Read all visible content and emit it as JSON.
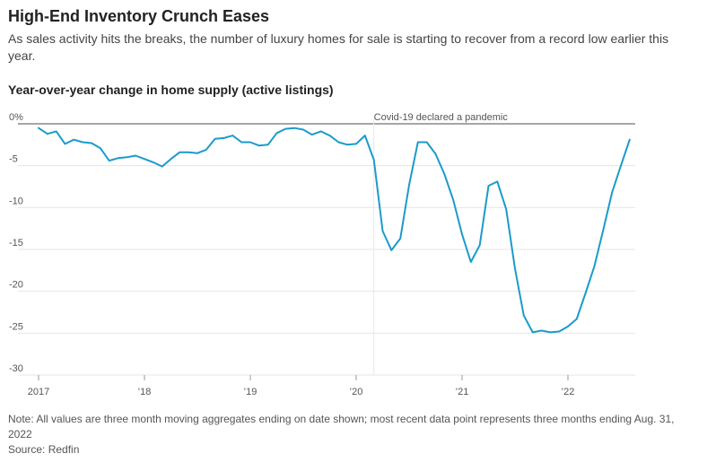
{
  "header": {
    "title": "High-End Inventory Crunch Eases",
    "subtitle": "As sales activity hits the breaks, the number of luxury homes for sale is starting to recover from a record low earlier this year."
  },
  "chart_title": "Year-over-year change in home supply (active listings)",
  "annotation": "Covid-19 declared a pandemic",
  "footer": {
    "note": "Note: All values are three month moving aggregates ending on date shown; most recent data point represents three months ending Aug. 31, 2022",
    "source": "Source: Redfin"
  },
  "colors": {
    "line": "#1a9bcb",
    "grid": "#e6e6e6",
    "zero": "#888888"
  },
  "chart_data": {
    "type": "line",
    "title": "Year-over-year change in home supply (active listings)",
    "ylim": [
      -30,
      0
    ],
    "y_ticks": [
      0,
      -5,
      -10,
      -15,
      -20,
      -25,
      -30
    ],
    "y_tick_labels": [
      "0%",
      "-5",
      "-10",
      "-15",
      "-20",
      "-25",
      "-30"
    ],
    "x_tick_labels": [
      "2017",
      "’18",
      "’19",
      "’20",
      "’21",
      "’22"
    ],
    "x_tick_years": [
      2017,
      2018,
      2019,
      2020,
      2021,
      2022
    ],
    "grid": true,
    "annotation": {
      "label": "Covid-19 declared a pandemic",
      "x": "2020-03"
    },
    "series": [
      {
        "x": [
          "2017-01",
          "2017-02",
          "2017-03",
          "2017-04",
          "2017-05",
          "2017-06",
          "2017-07",
          "2017-08",
          "2017-09",
          "2017-10",
          "2017-11",
          "2017-12",
          "2018-01",
          "2018-02",
          "2018-03",
          "2018-04",
          "2018-05",
          "2018-06",
          "2018-07",
          "2018-08",
          "2018-09",
          "2018-10",
          "2018-11",
          "2018-12",
          "2019-01",
          "2019-02",
          "2019-03",
          "2019-04",
          "2019-05",
          "2019-06",
          "2019-07",
          "2019-08",
          "2019-09",
          "2019-10",
          "2019-11",
          "2019-12",
          "2020-01",
          "2020-02",
          "2020-03",
          "2020-04",
          "2020-05",
          "2020-06",
          "2020-07",
          "2020-08",
          "2020-09",
          "2020-10",
          "2020-11",
          "2020-12",
          "2021-01",
          "2021-02",
          "2021-03",
          "2021-04",
          "2021-05",
          "2021-06",
          "2021-07",
          "2021-08",
          "2021-09",
          "2021-10",
          "2021-11",
          "2021-12",
          "2022-01",
          "2022-02",
          "2022-03",
          "2022-04",
          "2022-05",
          "2022-06",
          "2022-07",
          "2022-08"
        ],
        "values": [
          -0.5,
          -1.2,
          -0.9,
          -2.4,
          -1.9,
          -2.2,
          -2.3,
          -2.9,
          -4.4,
          -4.1,
          -4.0,
          -3.8,
          -4.2,
          -4.6,
          -5.1,
          -4.2,
          -3.4,
          -3.4,
          -3.5,
          -3.1,
          -1.8,
          -1.7,
          -1.4,
          -2.2,
          -2.2,
          -2.6,
          -2.5,
          -1.1,
          -0.6,
          -0.5,
          -0.7,
          -1.3,
          -0.9,
          -1.4,
          -2.2,
          -2.5,
          -2.4,
          -1.4,
          -4.3,
          -12.8,
          -15.1,
          -13.7,
          -7.3,
          -2.2,
          -2.2,
          -3.6,
          -6.0,
          -9.1,
          -13.2,
          -16.5,
          -14.5,
          -7.4,
          -6.9,
          -10.2,
          -17.3,
          -22.9,
          -24.9,
          -24.7,
          -24.9,
          -24.8,
          -24.2,
          -23.3,
          -20.2,
          -17.0,
          -12.7,
          -8.2,
          -5.0,
          -1.9
        ]
      }
    ]
  }
}
